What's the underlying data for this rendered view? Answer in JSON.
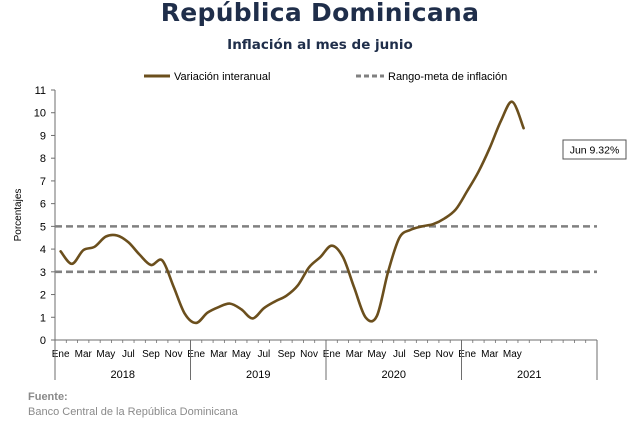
{
  "header": {
    "title": "República Dominicana",
    "subtitle": "Inflación al mes de junio"
  },
  "footer": {
    "source_label": "Fuente:",
    "source_text": "Banco Central de la República Dominicana"
  },
  "colors": {
    "title": "#1f2e4a",
    "series_line": "#6b4f1d",
    "target_line": "#808080",
    "axis": "#6e6e6e",
    "text": "#000000"
  },
  "chart_data": {
    "type": "line",
    "ylabel": "Porcentajes",
    "ylim": [
      0,
      11
    ],
    "yticks": [
      0,
      1,
      2,
      3,
      4,
      5,
      6,
      7,
      8,
      9,
      10,
      11
    ],
    "grid": false,
    "legend_position": "top",
    "month_tick_labels": [
      "Ene",
      "Mar",
      "May",
      "Jul",
      "Sep",
      "Nov",
      "Ene",
      "Mar",
      "May",
      "Jul",
      "Sep",
      "Nov",
      "Ene",
      "Mar",
      "May",
      "Jul",
      "Sep",
      "Nov",
      "Ene",
      "Mar",
      "May"
    ],
    "year_labels": [
      "2018",
      "2019",
      "2020",
      "2021"
    ],
    "months": [
      "2018-01",
      "2018-02",
      "2018-03",
      "2018-04",
      "2018-05",
      "2018-06",
      "2018-07",
      "2018-08",
      "2018-09",
      "2018-10",
      "2018-11",
      "2018-12",
      "2019-01",
      "2019-02",
      "2019-03",
      "2019-04",
      "2019-05",
      "2019-06",
      "2019-07",
      "2019-08",
      "2019-09",
      "2019-10",
      "2019-11",
      "2019-12",
      "2020-01",
      "2020-02",
      "2020-03",
      "2020-04",
      "2020-05",
      "2020-06",
      "2020-07",
      "2020-08",
      "2020-09",
      "2020-10",
      "2020-11",
      "2020-12",
      "2021-01",
      "2021-02",
      "2021-03",
      "2021-04",
      "2021-05",
      "2021-06"
    ],
    "series": [
      {
        "name": "Variación interanual",
        "values": [
          3.9,
          3.35,
          3.95,
          4.1,
          4.55,
          4.6,
          4.3,
          3.75,
          3.3,
          3.5,
          2.35,
          1.15,
          0.75,
          1.2,
          1.45,
          1.6,
          1.35,
          0.95,
          1.4,
          1.7,
          1.95,
          2.4,
          3.2,
          3.65,
          4.15,
          3.65,
          2.3,
          1.0,
          1.05,
          3.0,
          4.5,
          4.85,
          5.0,
          5.1,
          5.35,
          5.75,
          6.55,
          7.4,
          8.45,
          9.65,
          10.48,
          9.32
        ],
        "style": "solid"
      },
      {
        "name": "Rango-meta de inflación",
        "values_upper": 5,
        "values_lower": 3,
        "style": "dashed"
      }
    ],
    "annotation": {
      "text": "Jun 9.32%",
      "x": "2021-06",
      "y": 9.32
    }
  }
}
